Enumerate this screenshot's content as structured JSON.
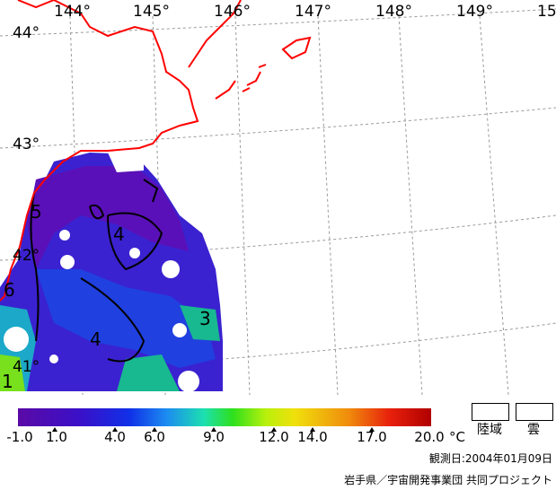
{
  "map": {
    "lon_labels": [
      "144°",
      "145°",
      "146°",
      "147°",
      "148°",
      "149°",
      "15"
    ],
    "lat_labels": [
      "44°",
      "43°",
      "42°",
      "41°"
    ],
    "contour_labels": [
      "5",
      "4",
      "4",
      "3",
      "6",
      "1"
    ]
  },
  "colorbar": {
    "ticks": [
      "-1.0",
      "1.0",
      "4.0",
      "6.0",
      "9.0",
      "12.0",
      "14.0",
      "17.0",
      "20.0"
    ],
    "unit": "°C"
  },
  "legend": {
    "land_label": "陸域",
    "cloud_label": "雲"
  },
  "observation_date": "観測日:2004年01月09日",
  "credit": "岩手県／宇宙開発事業団 共同プロジェクト",
  "colors": {
    "coastline": "#ff0000",
    "grid": "#9a9a9a",
    "sst_cold": "#5a0aa6",
    "sst_warm": "#b00000"
  }
}
